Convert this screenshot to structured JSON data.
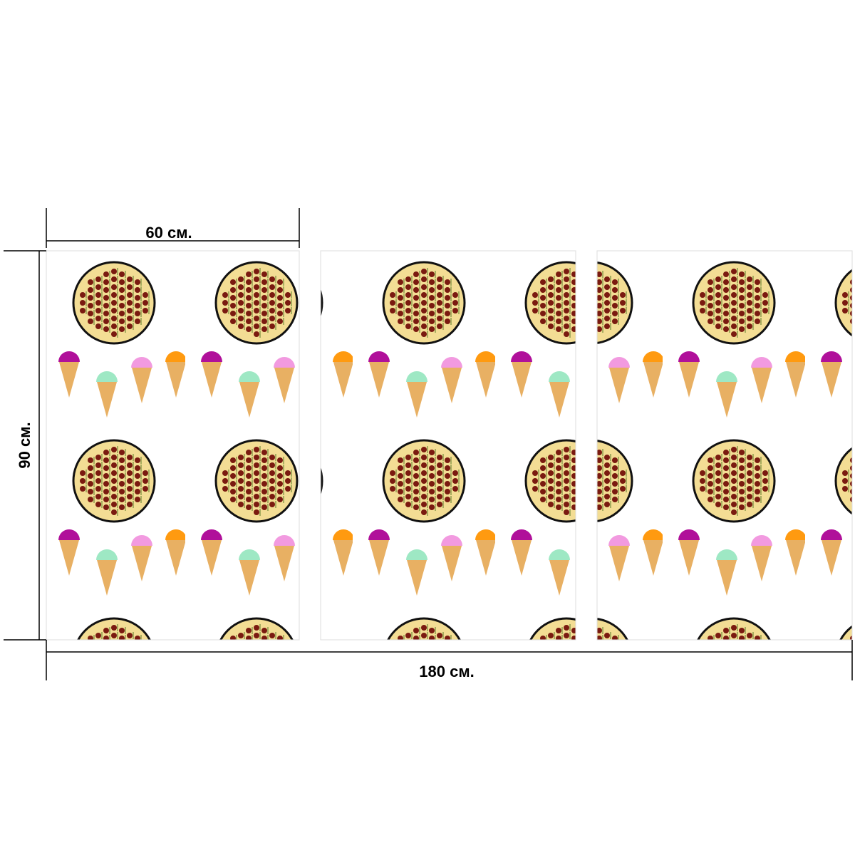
{
  "dimensions": {
    "panel_width": "60 см.",
    "height": "90 см.",
    "total_width": "180 см."
  }
}
